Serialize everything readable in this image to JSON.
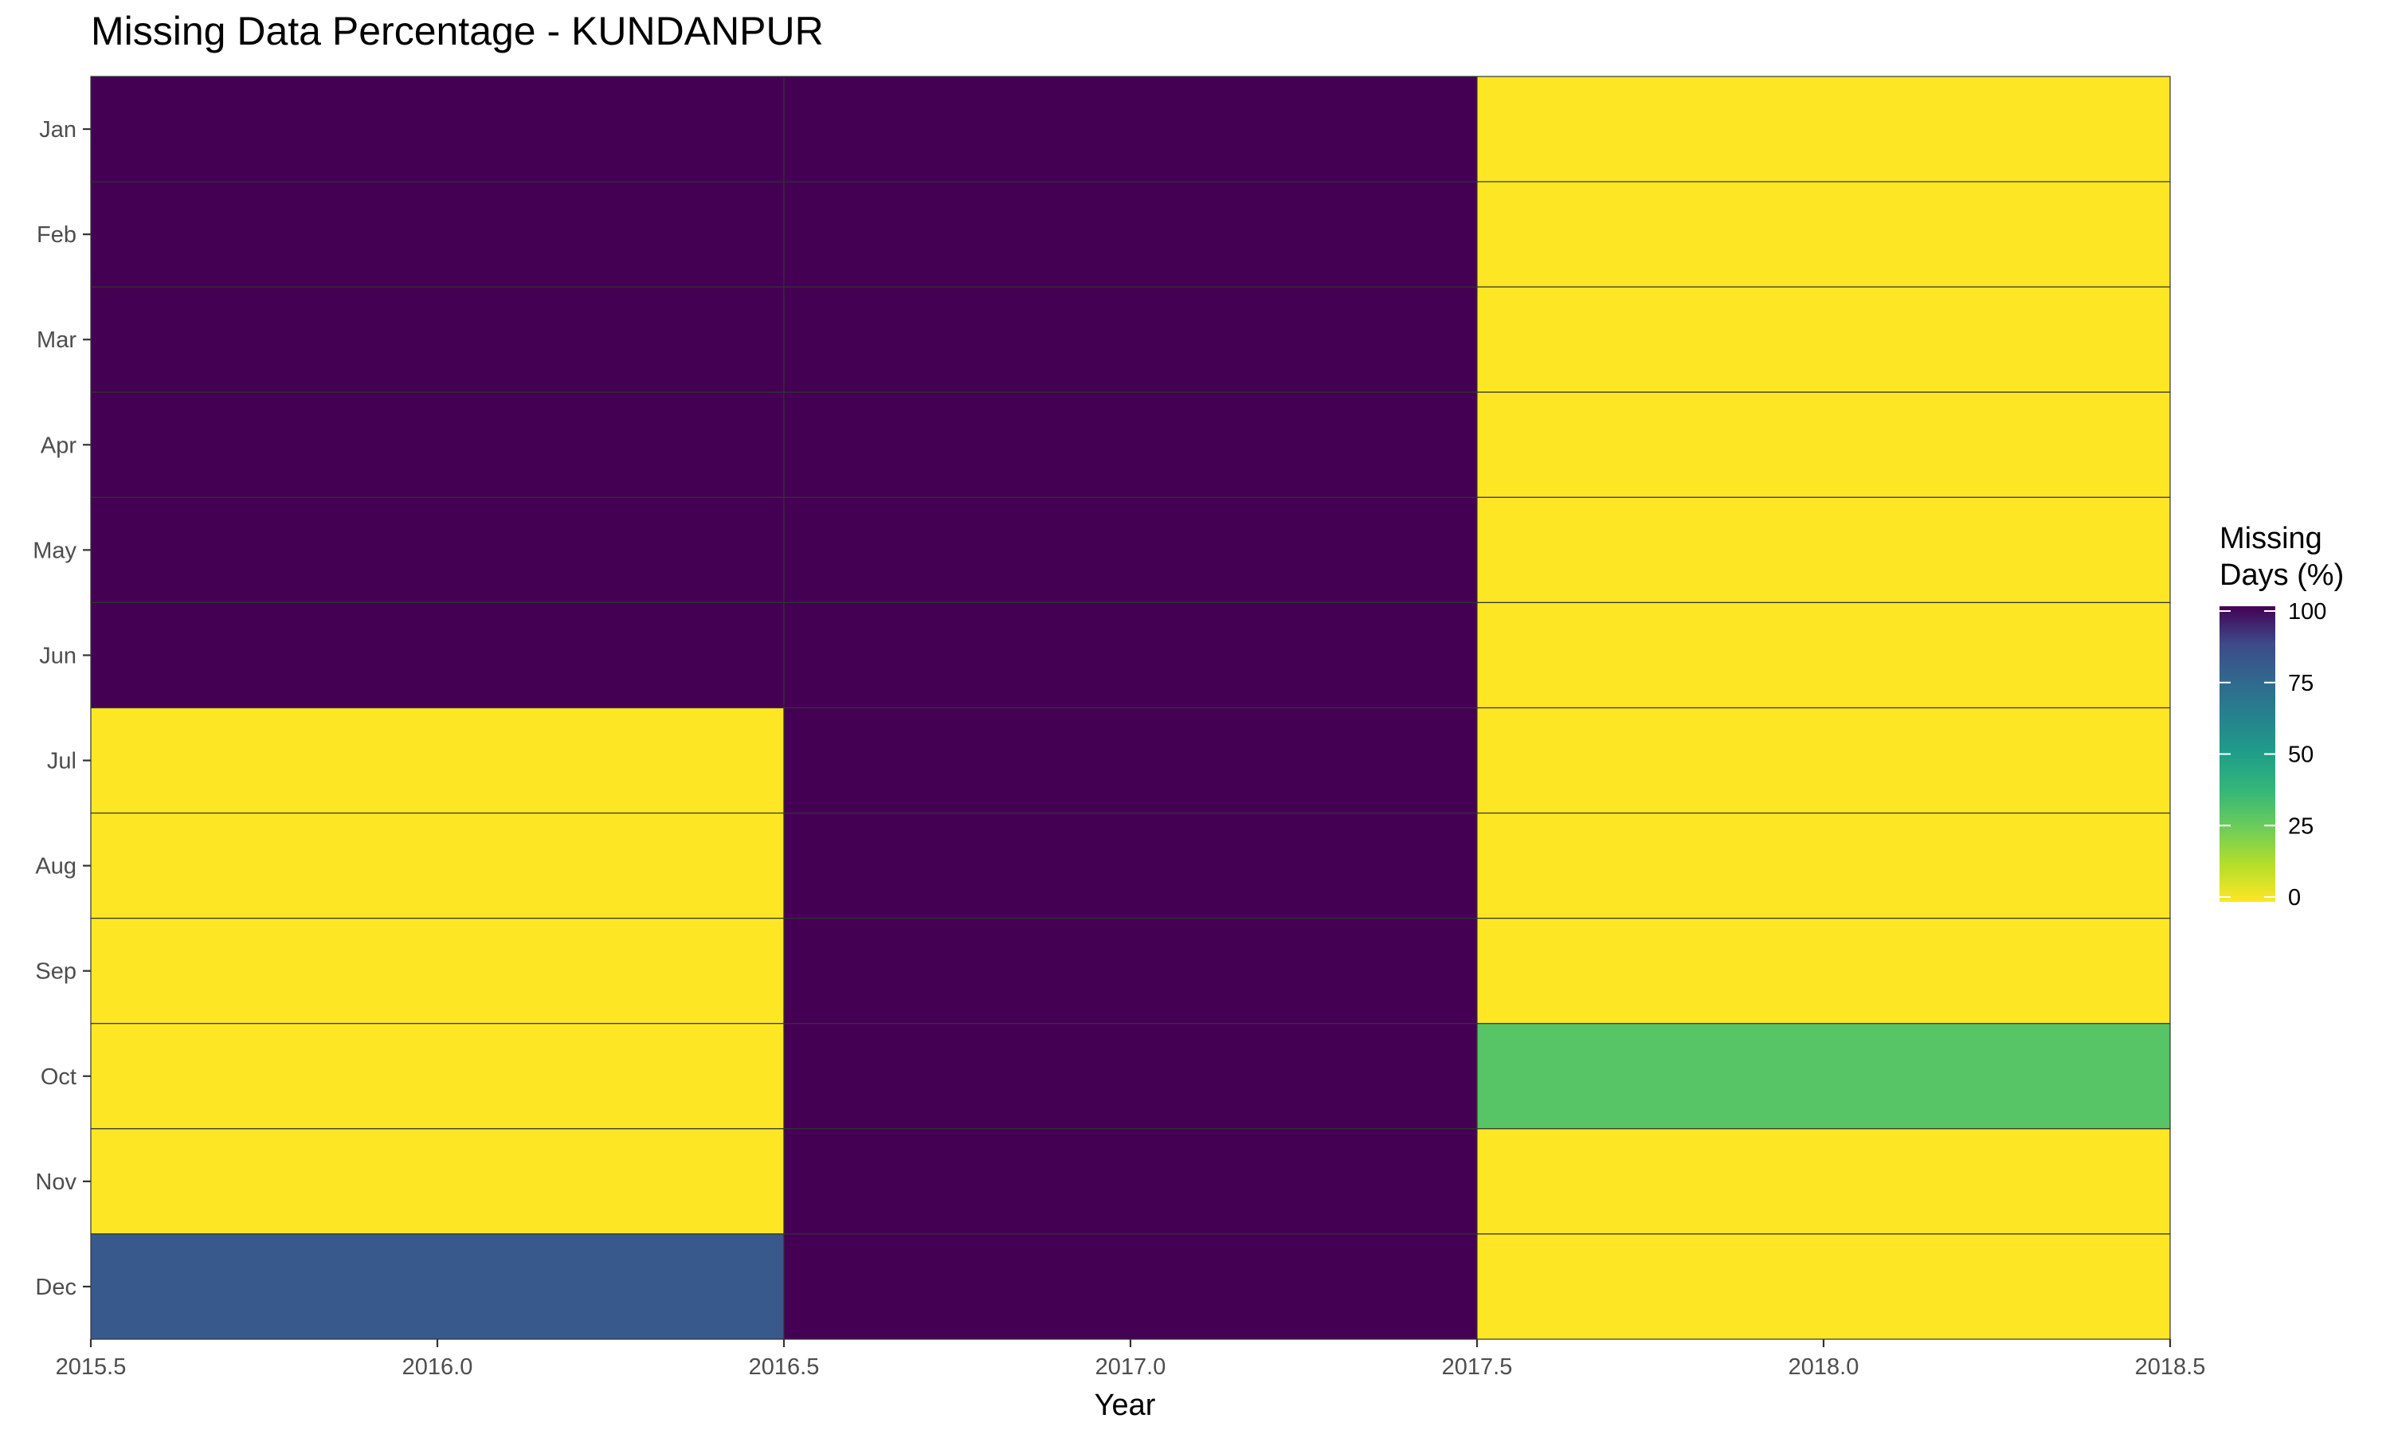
{
  "chart_data": {
    "type": "heatmap",
    "title": "Missing Data Percentage - KUNDANPUR",
    "xlabel": "Year",
    "ylabel": "",
    "x_categories": [
      2016,
      2017,
      2018
    ],
    "y_categories": [
      "Jan",
      "Feb",
      "Mar",
      "Apr",
      "May",
      "Jun",
      "Jul",
      "Aug",
      "Sep",
      "Oct",
      "Nov",
      "Dec"
    ],
    "x_ticks": [
      "2015.5",
      "2016.0",
      "2016.5",
      "2017.0",
      "2017.5",
      "2018.0",
      "2018.5"
    ],
    "x_tick_values": [
      2015.5,
      2016.0,
      2016.5,
      2017.0,
      2017.5,
      2018.0,
      2018.5
    ],
    "xlim": [
      2015.5,
      2018.5
    ],
    "values": [
      [
        100,
        100,
        0
      ],
      [
        100,
        100,
        0
      ],
      [
        100,
        100,
        0
      ],
      [
        100,
        100,
        0
      ],
      [
        100,
        100,
        0
      ],
      [
        100,
        100,
        0
      ],
      [
        0,
        100,
        0
      ],
      [
        0,
        100,
        0
      ],
      [
        0,
        100,
        0
      ],
      [
        0,
        100,
        30
      ],
      [
        0,
        100,
        0
      ],
      [
        81,
        100,
        0
      ]
    ],
    "legend": {
      "title_lines": [
        "Missing",
        "Days (%)"
      ],
      "ticks": [
        0,
        25,
        50,
        75,
        100
      ],
      "range": [
        0,
        100
      ],
      "placement": "right"
    },
    "colormap": "viridis-reversed",
    "grid": false
  }
}
